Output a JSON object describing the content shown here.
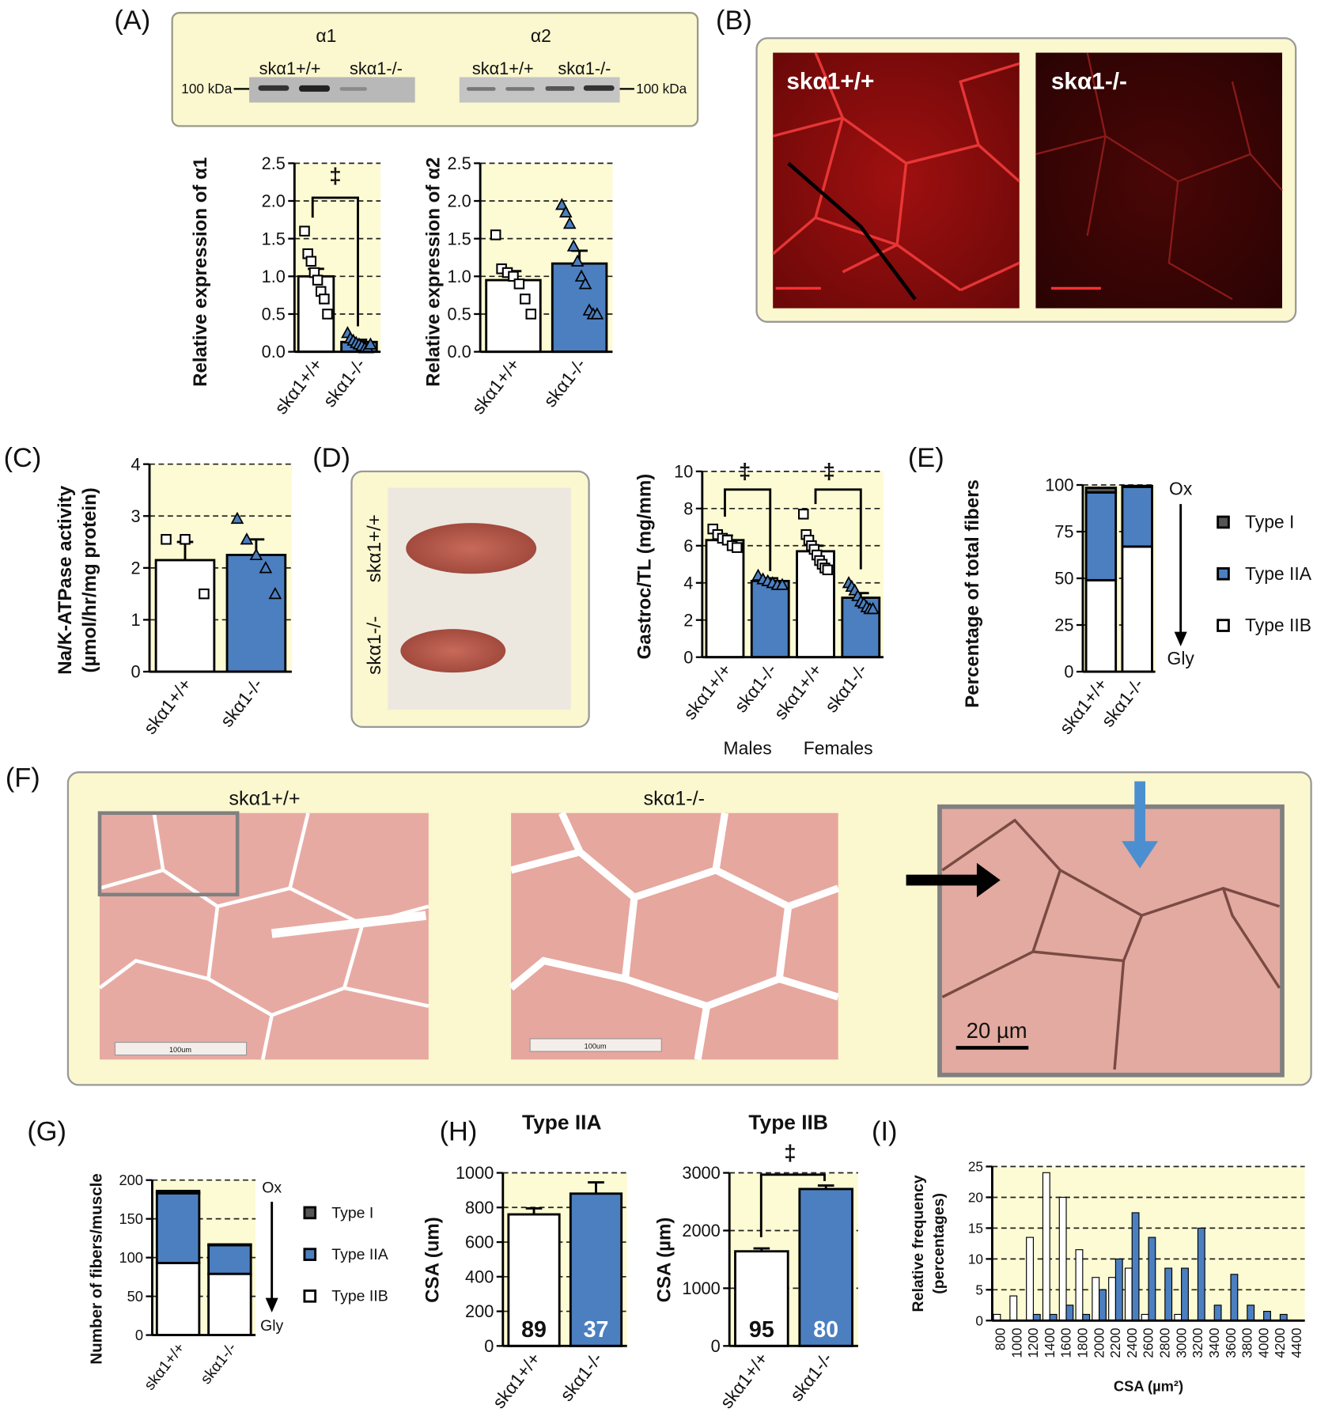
{
  "panel_labels": [
    "(A)",
    "(B)",
    "(C)",
    "(D)",
    "(E)",
    "(F)",
    "(G)",
    "(H)",
    "(I)"
  ],
  "blot": {
    "alpha1": "α1",
    "alpha2": "α2",
    "lanes": [
      "skα1+/+",
      "skα1-/-",
      "skα1+/+",
      "skα1-/-"
    ],
    "marker": "100 kDa"
  },
  "micrographs_b": {
    "labels": [
      "skα1+/+",
      "skα1-/-"
    ]
  },
  "photo_d": {
    "labels": [
      "skα1+/+",
      "skα1-/-"
    ]
  },
  "histology_f": {
    "labels": [
      "skα1+/+",
      "skα1-/-"
    ],
    "scale_bar": "100um",
    "inset_scale_bar": "20 µm"
  },
  "chart_data": [
    {
      "type": "bar",
      "ylabel": "Relative expression of α1",
      "categories": [
        "skα1+/+",
        "skα1-/-"
      ],
      "values": [
        1.0,
        0.13
      ],
      "errors": [
        0.1,
        0.03
      ],
      "colors": [
        "#ffffff",
        "#4b7fc0"
      ],
      "markers": [
        "square",
        "triangle"
      ],
      "points": [
        [
          1.6,
          1.3,
          1.2,
          1.05,
          0.95,
          0.8,
          0.7,
          0.5
        ],
        [
          0.25,
          0.18,
          0.15,
          0.12,
          0.1,
          0.08,
          0.05,
          0.05,
          0.1
        ]
      ],
      "ylim": [
        0,
        2.5
      ],
      "yticks": [
        {
          "value": 0,
          "label": "0.0"
        },
        0.5,
        {
          "value": 1,
          "label": "1.0"
        },
        1.5,
        {
          "value": 2,
          "label": "2.0"
        },
        2.5
      ],
      "grid": true,
      "annotations": [
        "‡"
      ]
    },
    {
      "type": "bar",
      "ylabel": "Relative expression of α2",
      "categories": [
        "skα1+/+",
        "skα1-/-"
      ],
      "values": [
        0.95,
        1.17
      ],
      "errors": [
        0.12,
        0.17
      ],
      "colors": [
        "#ffffff",
        "#4b7fc0"
      ],
      "markers": [
        "square",
        "triangle"
      ],
      "points": [
        [
          1.55,
          1.1,
          1.05,
          1.0,
          0.9,
          0.7,
          0.5
        ],
        [
          1.95,
          1.85,
          1.7,
          1.4,
          1.2,
          1.0,
          0.9,
          0.55,
          0.5,
          0.5
        ]
      ],
      "ylim": [
        0,
        2.5
      ],
      "yticks": [
        {
          "value": 0,
          "label": "0.0"
        },
        0.5,
        {
          "value": 1,
          "label": "1.0"
        },
        1.5,
        {
          "value": 2,
          "label": "2.0"
        },
        2.5
      ],
      "grid": true
    },
    {
      "type": "bar",
      "ylabel": [
        "Na/K-ATPase activity",
        "(µmol/hr/mg protein)"
      ],
      "categories": [
        "skα1+/+",
        "skα1-/-"
      ],
      "values": [
        2.15,
        2.25
      ],
      "errors": [
        0.35,
        0.3
      ],
      "colors": [
        "#ffffff",
        "#4b7fc0"
      ],
      "markers": [
        "square",
        "triangle"
      ],
      "points": [
        [
          2.55,
          2.55,
          1.5
        ],
        [
          2.95,
          2.55,
          2.25,
          2.0,
          1.5
        ]
      ],
      "ylim": [
        0,
        4
      ],
      "yticks": [
        0,
        1,
        2,
        3,
        4
      ],
      "grid": true
    },
    {
      "type": "bar",
      "ylabel": "Gastroc/TL (mg/mm)",
      "categories": [
        "skα1+/+",
        "skα1-/-",
        "skα1+/+",
        "skα1-/-"
      ],
      "groups": [
        "Males",
        "Females"
      ],
      "values": [
        6.3,
        4.1,
        5.7,
        3.2
      ],
      "errors": [
        0.25,
        0.15,
        0.3,
        0.25
      ],
      "colors": [
        "#ffffff",
        "#4b7fc0",
        "#ffffff",
        "#4b7fc0"
      ],
      "markers": [
        "square",
        "triangle",
        "square",
        "triangle"
      ],
      "points": [
        [
          6.9,
          6.6,
          6.4,
          6.3,
          6.0,
          5.9
        ],
        [
          4.4,
          4.2,
          4.1,
          4.0,
          3.9,
          3.9
        ],
        [
          7.7,
          6.6,
          6.3,
          6.0,
          5.8,
          5.5,
          5.2,
          5.0,
          4.8,
          4.7
        ],
        [
          4.0,
          3.8,
          3.6,
          3.3,
          3.0,
          2.9,
          2.7,
          2.6,
          2.6
        ]
      ],
      "ylim": [
        0,
        10
      ],
      "yticks": [
        0,
        2,
        4,
        6,
        8,
        10
      ],
      "grid": true,
      "annotations": [
        "‡",
        "‡"
      ]
    },
    {
      "type": "stacked_bar",
      "ylabel": "Percentage of total fibers",
      "categories": [
        "skα1+/+",
        "skα1-/-"
      ],
      "series": [
        {
          "name": "Type I",
          "color": "#555555",
          "values": [
            2.5,
            0.5
          ]
        },
        {
          "name": "Type IIA",
          "color": "#4b7fc0",
          "values": [
            47,
            32
          ]
        },
        {
          "name": "Type IIB",
          "color": "#ffffff",
          "values": [
            49,
            67
          ]
        }
      ],
      "ylim": [
        0,
        100
      ],
      "yticks": [
        0,
        25,
        50,
        75,
        100
      ],
      "grid": true,
      "annotations": [
        "Ox",
        "Gly"
      ]
    },
    {
      "type": "stacked_bar",
      "ylabel": "Number of fibers/muscle",
      "categories": [
        "skα1+/+",
        "skα1-/-"
      ],
      "series": [
        {
          "name": "Type I",
          "color": "#555555",
          "values": [
            3,
            1
          ]
        },
        {
          "name": "Type IIA",
          "color": "#4b7fc0",
          "values": [
            90,
            37
          ]
        },
        {
          "name": "Type IIB",
          "color": "#ffffff",
          "values": [
            93,
            79
          ]
        }
      ],
      "ylim": [
        0,
        200
      ],
      "yticks": [
        0,
        50,
        100,
        150,
        200
      ],
      "grid": true,
      "annotations": [
        "Ox",
        "Gly"
      ]
    },
    {
      "type": "bar",
      "title": "Type IIA",
      "ylabel": "CSA (um)",
      "categories": [
        "skα1+/+",
        "skα1-/-"
      ],
      "values": [
        760,
        880
      ],
      "errors": [
        35,
        65
      ],
      "colors": [
        "#ffffff",
        "#4b7fc0"
      ],
      "sample_sizes": [
        89,
        37
      ],
      "ylim": [
        0,
        1000
      ],
      "yticks": [
        0,
        200,
        400,
        600,
        800,
        1000
      ],
      "grid": true
    },
    {
      "type": "bar",
      "title": "Type IIB",
      "ylabel": "CSA (µm)",
      "categories": [
        "skα1+/+",
        "skα1-/-"
      ],
      "values": [
        1640,
        2720
      ],
      "errors": [
        50,
        60
      ],
      "colors": [
        "#ffffff",
        "#4b7fc0"
      ],
      "sample_sizes": [
        95,
        80
      ],
      "ylim": [
        0,
        3000
      ],
      "yticks": [
        0,
        1000,
        2000,
        3000
      ],
      "grid": true,
      "annotations": [
        "‡"
      ]
    },
    {
      "type": "grouped_bar",
      "ylabel": [
        "Relative frequency",
        "(percentages)"
      ],
      "xlabel": "CSA (µm²)",
      "categories": [
        800,
        1000,
        1200,
        1400,
        1600,
        1800,
        2000,
        2200,
        2400,
        2600,
        2800,
        3000,
        3200,
        3400,
        3600,
        3800,
        4000,
        4200,
        4400
      ],
      "series": [
        {
          "color": "#ffffff",
          "values": [
            1,
            4,
            13.5,
            24,
            20,
            11.5,
            7,
            7,
            8.5,
            1,
            0,
            1,
            0,
            0,
            0,
            0,
            0,
            0,
            0
          ]
        },
        {
          "color": "#4b7fc0",
          "values": [
            0,
            0,
            1,
            1,
            2.5,
            1,
            5,
            10,
            17.5,
            13.5,
            8.5,
            8.5,
            15,
            2.5,
            7.5,
            2.5,
            1.5,
            1,
            0
          ]
        }
      ],
      "ylim": [
        0,
        25
      ],
      "yticks": [
        0,
        5,
        10,
        15,
        20,
        25
      ],
      "grid": true
    }
  ]
}
